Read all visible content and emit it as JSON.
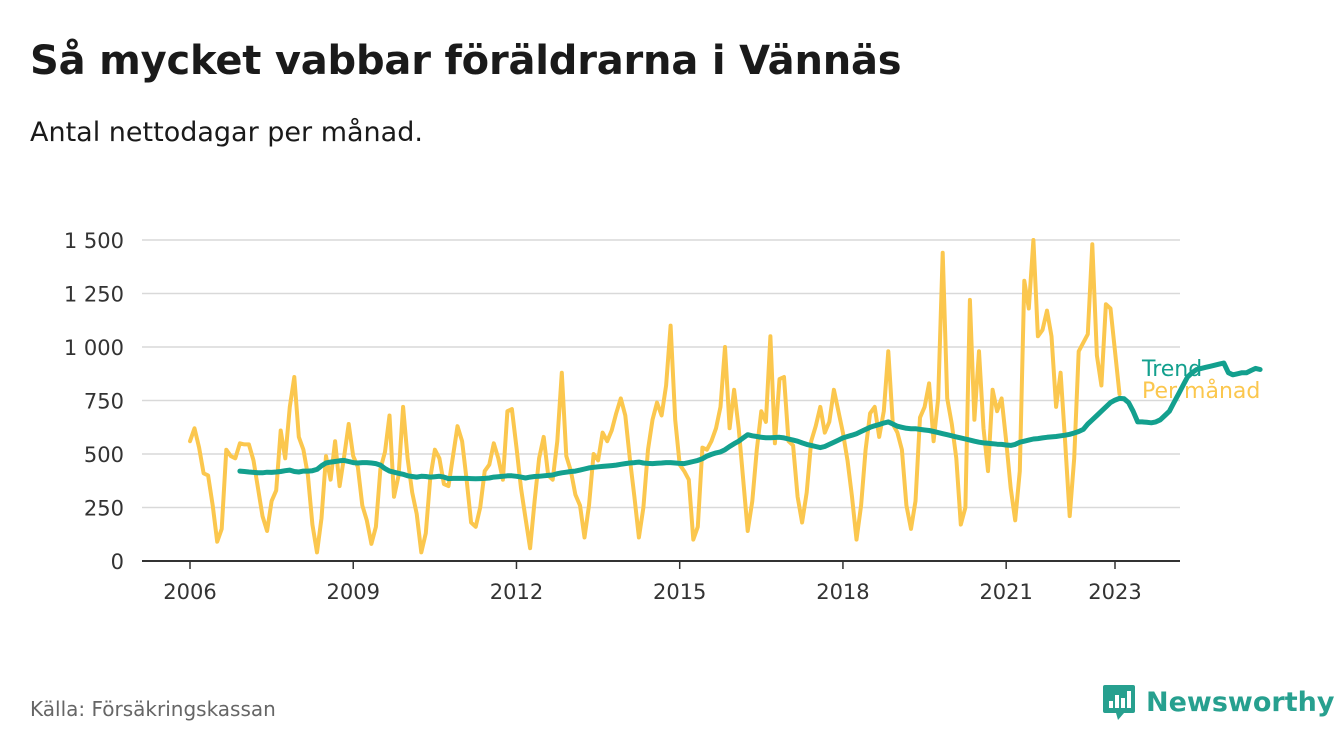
{
  "header": {
    "title": "Så mycket vabbar föräldrarna i Vännäs",
    "subtitle": "Antal nettodagar per månad."
  },
  "footer": {
    "source": "Källa: Försäkringskassan",
    "brand": "Newsworthy"
  },
  "colors": {
    "per_month": "#FBC74E",
    "trend": "#13A08E",
    "brand": "#27A08F"
  },
  "icons": [
    "newsworthy-logo-icon"
  ],
  "chart_data": {
    "type": "line",
    "title": "Så mycket vabbar föräldrarna i Vännäs",
    "subtitle": "Antal nettodagar per månad.",
    "xlabel": "",
    "ylabel": "",
    "x_ticks": [
      "2006",
      "2009",
      "2012",
      "2015",
      "2018",
      "2021",
      "2023"
    ],
    "y_ticks": [
      "0",
      "250",
      "500",
      "750",
      "1 000",
      "1 250",
      "1 500"
    ],
    "ylim": [
      0,
      1500
    ],
    "xlim": [
      "2005-01",
      "2024-01"
    ],
    "grid": true,
    "legend": "inline-right-end",
    "series": [
      {
        "name": "Per månad",
        "color": "#FBC74E",
        "start": "2006-01",
        "frequency": "monthly",
        "values": [
          560,
          620,
          530,
          410,
          400,
          260,
          90,
          150,
          520,
          490,
          480,
          550,
          545,
          545,
          470,
          340,
          210,
          140,
          280,
          330,
          610,
          480,
          720,
          860,
          580,
          520,
          400,
          170,
          40,
          200,
          490,
          380,
          560,
          350,
          490,
          640,
          490,
          440,
          260,
          190,
          80,
          160,
          430,
          510,
          680,
          300,
          400,
          720,
          480,
          320,
          220,
          40,
          130,
          390,
          520,
          480,
          360,
          350,
          490,
          630,
          560,
          380,
          180,
          160,
          250,
          420,
          450,
          550,
          480,
          380,
          700,
          710,
          530,
          340,
          200,
          60,
          280,
          480,
          580,
          400,
          380,
          560,
          880,
          490,
          420,
          310,
          260,
          110,
          260,
          500,
          470,
          600,
          560,
          610,
          690,
          760,
          680,
          480,
          300,
          110,
          250,
          520,
          660,
          740,
          680,
          820,
          1100,
          660,
          450,
          420,
          380,
          100,
          160,
          530,
          520,
          560,
          620,
          720,
          1000,
          620,
          800,
          620,
          380,
          140,
          280,
          520,
          700,
          650,
          1050,
          550,
          850,
          860,
          560,
          540,
          300,
          180,
          320,
          560,
          630,
          720,
          600,
          650,
          800,
          700,
          600,
          470,
          300,
          100,
          260,
          520,
          690,
          720,
          580,
          700,
          980,
          640,
          600,
          520,
          260,
          150,
          280,
          670,
          720,
          830,
          560,
          760,
          1440,
          760,
          640,
          480,
          170,
          250,
          1220,
          660,
          980,
          620,
          420,
          800,
          700,
          760,
          560,
          340,
          190,
          420,
          1310,
          1180,
          1500,
          1050,
          1080,
          1170,
          1050,
          720,
          880,
          560,
          210,
          480,
          980,
          1020,
          1060,
          1480,
          960,
          820,
          1200,
          1180,
          980,
          780
        ]
      },
      {
        "name": "Trend",
        "color": "#13A08E",
        "start": "2006-12",
        "frequency": "monthly",
        "values": [
          420,
          418,
          416,
          414,
          412,
          412,
          415,
          414,
          416,
          418,
          422,
          425,
          418,
          416,
          420,
          420,
          422,
          428,
          445,
          458,
          462,
          465,
          468,
          470,
          465,
          460,
          458,
          460,
          460,
          458,
          455,
          448,
          432,
          420,
          415,
          410,
          405,
          398,
          395,
          392,
          396,
          395,
          392,
          394,
          396,
          392,
          385,
          386,
          386,
          386,
          386,
          385,
          384,
          385,
          386,
          388,
          392,
          394,
          396,
          398,
          398,
          396,
          392,
          388,
          392,
          395,
          396,
          398,
          400,
          402,
          408,
          412,
          415,
          418,
          420,
          425,
          430,
          435,
          438,
          440,
          442,
          444,
          446,
          448,
          452,
          455,
          458,
          460,
          462,
          458,
          456,
          455,
          457,
          458,
          460,
          460,
          458,
          456,
          455,
          460,
          465,
          470,
          478,
          490,
          498,
          505,
          510,
          520,
          535,
          548,
          560,
          575,
          590,
          585,
          582,
          578,
          576,
          576,
          577,
          578,
          575,
          570,
          565,
          560,
          552,
          545,
          540,
          535,
          530,
          535,
          545,
          555,
          565,
          575,
          582,
          588,
          595,
          605,
          615,
          625,
          632,
          638,
          645,
          650,
          640,
          630,
          625,
          620,
          618,
          618,
          615,
          612,
          610,
          605,
          600,
          595,
          590,
          585,
          580,
          575,
          570,
          565,
          560,
          555,
          552,
          550,
          548,
          546,
          545,
          542,
          540,
          545,
          555,
          560,
          565,
          570,
          572,
          575,
          578,
          580,
          582,
          585,
          588,
          592,
          598,
          605,
          615,
          640,
          660,
          680,
          700,
          720,
          740,
          752,
          760,
          758,
          740,
          700,
          650,
          650,
          648,
          646,
          650,
          660,
          680,
          700,
          740,
          780,
          820,
          860,
          880,
          895,
          900,
          905,
          910,
          915,
          920,
          925,
          880,
          870,
          875,
          880,
          880,
          890,
          900,
          895
        ]
      }
    ]
  }
}
